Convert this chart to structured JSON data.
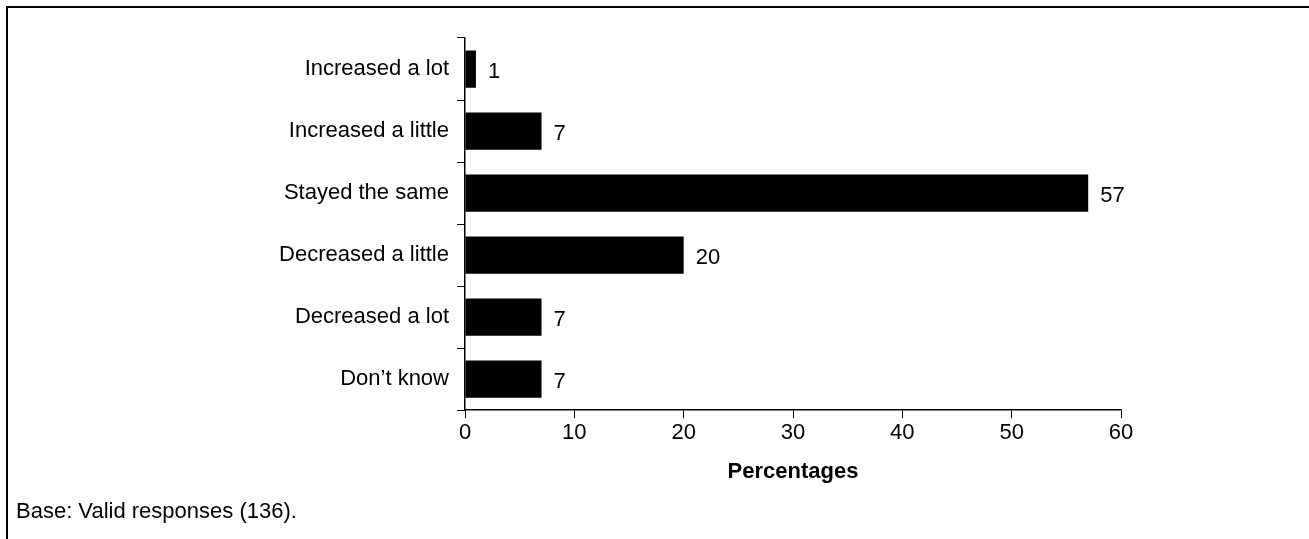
{
  "chart_data": {
    "type": "bar",
    "orientation": "horizontal",
    "categories": [
      "Increased a lot",
      "Increased a little",
      "Stayed the same",
      "Decreased a little",
      "Decreased a lot",
      "Don’t know"
    ],
    "values": [
      1,
      7,
      57,
      20,
      7,
      7
    ],
    "color": "#000000",
    "xlabel": "Percentages",
    "xlim": [
      0,
      60
    ],
    "xticks": [
      0,
      10,
      20,
      30,
      40,
      50,
      60
    ],
    "grid": false,
    "legend": false,
    "data_labels": true,
    "annotations": [
      "Base: Valid responses (136)."
    ]
  }
}
